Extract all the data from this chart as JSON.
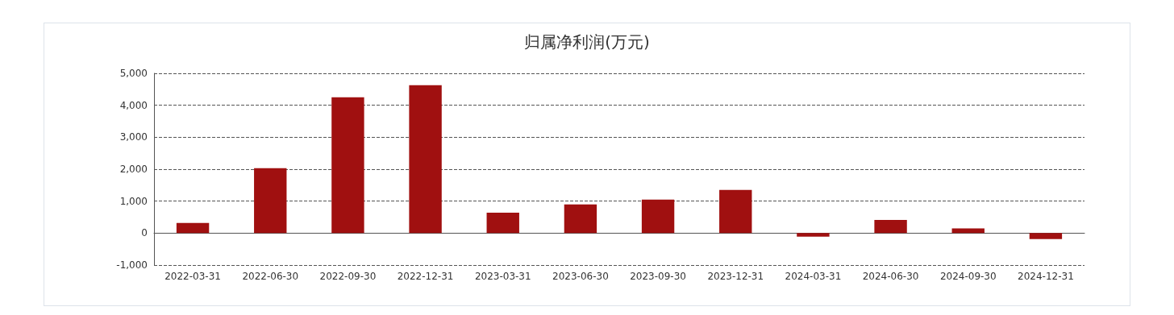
{
  "chart_data": {
    "type": "bar",
    "title": "归属净利润(万元)",
    "categories": [
      "2022-03-31",
      "2022-06-30",
      "2022-09-30",
      "2022-12-31",
      "2023-03-31",
      "2023-06-30",
      "2023-09-30",
      "2023-12-31",
      "2024-03-31",
      "2024-06-30",
      "2024-09-30",
      "2024-12-31"
    ],
    "values": [
      320,
      2030,
      4250,
      4630,
      640,
      900,
      1050,
      1350,
      -110,
      410,
      150,
      -190
    ],
    "color": "#a01010",
    "ylim": [
      -1000,
      5000
    ],
    "yticks": [
      {
        "value": -1000,
        "label": "-1,000"
      },
      0,
      {
        "value": 1000,
        "label": "1,000"
      },
      {
        "value": 2000,
        "label": "2,000"
      },
      {
        "value": 3000,
        "label": "3,000"
      },
      {
        "value": 4000,
        "label": "4,000"
      },
      {
        "value": 5000,
        "label": "5,000"
      }
    ],
    "grid": "y"
  }
}
